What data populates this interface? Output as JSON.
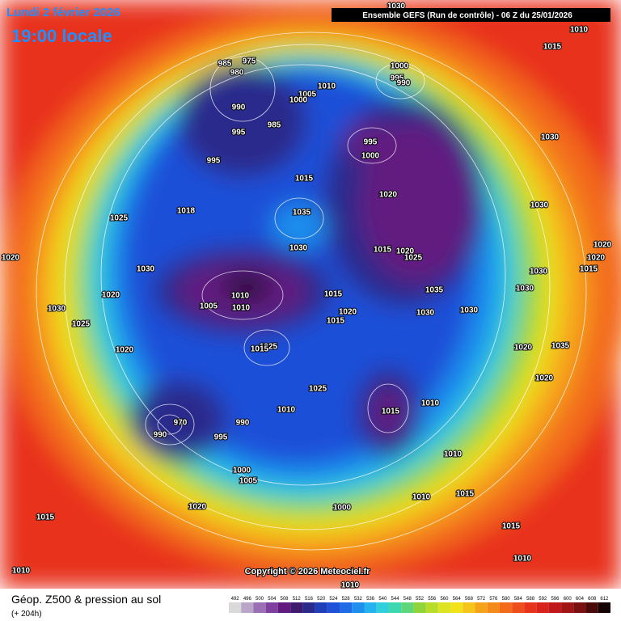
{
  "header": {
    "date": "Lundi 2 février 2026",
    "time": "19:00 locale",
    "model": "Ensemble GEFS  (Run de contrôle)  -  06 Z du 25/01/2026"
  },
  "map": {
    "copyright": "Copyright © 2026 Meteociel.fr",
    "isobars": [
      985,
      975,
      980,
      1005,
      1000,
      1010,
      990,
      985,
      995,
      995,
      1000,
      995,
      990,
      995,
      1000,
      1015,
      1020,
      1035,
      1030,
      1015,
      1020,
      1025,
      1010,
      1010,
      1005,
      1015,
      1020,
      1015,
      1035,
      1030,
      1030,
      1025,
      1015,
      1025,
      1015,
      1010,
      1010,
      990,
      995,
      970,
      990,
      1000,
      1005,
      1000,
      1010,
      1010,
      1015,
      1015,
      1020,
      1015,
      1010,
      1010,
      1010,
      1025,
      1018,
      1030,
      1020,
      1020,
      1030,
      1025,
      1020,
      1030,
      1030,
      1030,
      1020,
      1020,
      1015,
      1030,
      1020,
      1035,
      1020,
      1010,
      1015,
      1030
    ]
  },
  "footer": {
    "title": "Géop. Z500 & pression au sol",
    "lead": "(+ 204h)"
  },
  "colorbar": {
    "values": [
      492,
      496,
      500,
      504,
      508,
      512,
      516,
      520,
      524,
      528,
      532,
      536,
      540,
      544,
      548,
      552,
      556,
      560,
      564,
      568,
      572,
      576,
      580,
      584,
      588,
      592,
      596,
      600,
      604,
      608,
      612
    ],
    "colors": [
      "#d9d9d9",
      "#b9a6c9",
      "#9a6fb4",
      "#7f3f9f",
      "#621a80",
      "#3f1a6e",
      "#2a2a8c",
      "#1f3fb8",
      "#1f50d8",
      "#1f6ae6",
      "#1f8fee",
      "#25b3ef",
      "#2fd0dc",
      "#3ed8b0",
      "#5ed67a",
      "#8fd43a",
      "#b8dc2a",
      "#dce423",
      "#f1e21a",
      "#f5c51b",
      "#f5a31b",
      "#f38a1a",
      "#f36a1a",
      "#ee4e1b",
      "#e8331c",
      "#d8231c",
      "#c0181a",
      "#a01414",
      "#7a1010",
      "#4a0a0a",
      "#150404"
    ]
  }
}
